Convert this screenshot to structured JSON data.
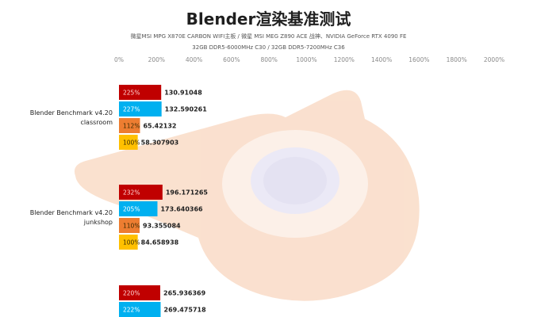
{
  "title": "Blender渲染基准测试",
  "subtitle_lines": [
    "微星MSI MPG X870E CARBON WIFI主板 / 微星 MSI MEG Z890 ACE 战神、NVIDIA GeForce RTX 4090 FE",
    "32GB DDR5-6000MHz  C30 / 32GB DDR5-7200MHz  C36"
  ],
  "colors": {
    "series": [
      "#c00000",
      "#00b0f0",
      "#ed7d31",
      "#ffc000"
    ],
    "tick_text": "#8a8a8a",
    "label_text": "#1f1f1f"
  },
  "chart_data": {
    "type": "bar",
    "orientation": "horizontal",
    "categories": [
      "Blender Benchmark v4.20 classroom",
      "Blender Benchmark v4.20 junkshop",
      ""
    ],
    "category_label_lines": [
      [
        "Blender Benchmark v4.20",
        "classroom"
      ],
      [
        "Blender Benchmark v4.20",
        "junkshop"
      ],
      []
    ],
    "xlim": [
      0,
      2000
    ],
    "x_ticks": [
      0,
      200,
      400,
      600,
      800,
      1000,
      1200,
      1400,
      1600,
      1800,
      2000
    ],
    "x_tick_labels": [
      "0%",
      "200%",
      "400%",
      "600%",
      "800%",
      "1000%",
      "1200%",
      "1400%",
      "1600%",
      "1800%",
      "2000%"
    ],
    "grid": false,
    "groups": [
      {
        "bars": [
          {
            "percent": 225,
            "percent_label": "225%",
            "value": 130.91048,
            "value_label": "130.91048"
          },
          {
            "percent": 227,
            "percent_label": "227%",
            "value": 132.590261,
            "value_label": "132.590261"
          },
          {
            "percent": 112,
            "percent_label": "112%",
            "value": 65.42132,
            "value_label": "65.42132"
          },
          {
            "percent": 100,
            "percent_label": "100%",
            "value": 58.307903,
            "value_label": "58.307903"
          }
        ]
      },
      {
        "bars": [
          {
            "percent": 232,
            "percent_label": "232%",
            "value": 196.171265,
            "value_label": "196.171265"
          },
          {
            "percent": 205,
            "percent_label": "205%",
            "value": 173.640366,
            "value_label": "173.640366"
          },
          {
            "percent": 110,
            "percent_label": "110%",
            "value": 93.355084,
            "value_label": "93.355084"
          },
          {
            "percent": 100,
            "percent_label": "100%",
            "value": 84.658938,
            "value_label": "84.658938"
          }
        ]
      },
      {
        "bars": [
          {
            "percent": 220,
            "percent_label": "220%",
            "value": 265.936369,
            "value_label": "265.936369"
          },
          {
            "percent": 222,
            "percent_label": "222%",
            "value": 269.475718,
            "value_label": "269.475718"
          }
        ]
      }
    ]
  }
}
